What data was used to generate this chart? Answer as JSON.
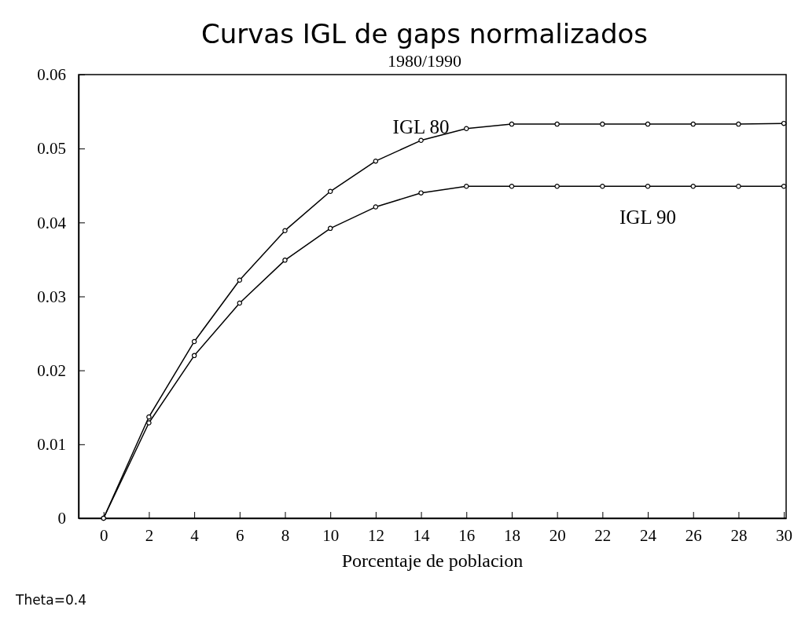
{
  "chart_data": {
    "type": "line",
    "title": "Curvas IGL de gaps normalizados",
    "subtitle": "1980/1990",
    "xlabel": "Porcentaje de poblacion",
    "x": [
      0,
      2,
      4,
      6,
      8,
      10,
      12,
      14,
      16,
      18,
      20,
      22,
      24,
      26,
      28,
      30
    ],
    "series": [
      {
        "name": "IGL 80",
        "color": "#000000",
        "values": [
          0,
          0.0137,
          0.0239,
          0.0322,
          0.0389,
          0.0442,
          0.0483,
          0.0511,
          0.0527,
          0.0533,
          0.0533,
          0.0533,
          0.0533,
          0.0533,
          0.0533,
          0.0534
        ]
      },
      {
        "name": "IGL 90",
        "color": "#000000",
        "values": [
          0,
          0.0129,
          0.022,
          0.0291,
          0.0349,
          0.0392,
          0.0421,
          0.044,
          0.0449,
          0.0449,
          0.0449,
          0.0449,
          0.0449,
          0.0449,
          0.0449,
          0.0449
        ]
      }
    ],
    "xlim": [
      -1.1,
      30.1
    ],
    "xticks": [
      0,
      2,
      4,
      6,
      8,
      10,
      12,
      14,
      16,
      18,
      20,
      22,
      24,
      26,
      28,
      30
    ],
    "ylim": [
      0,
      0.06
    ],
    "yticks": [
      0,
      0.01,
      0.02,
      0.03,
      0.04,
      0.05,
      0.06
    ],
    "grid": false,
    "legend": false,
    "marker": "circle",
    "line_style": "solid",
    "annotations": [
      "Theta=0.4"
    ]
  }
}
